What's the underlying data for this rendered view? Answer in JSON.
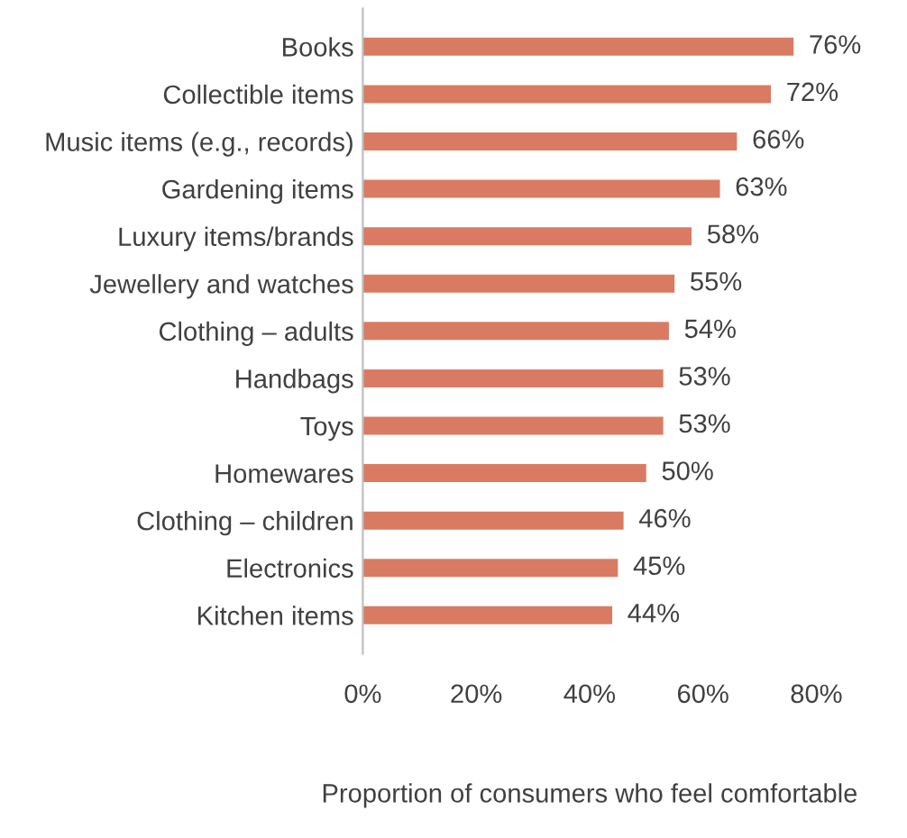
{
  "chart_data": {
    "type": "bar",
    "orientation": "horizontal",
    "categories": [
      "Books",
      "Collectible items",
      "Music items (e.g., records)",
      "Gardening items",
      "Luxury items/brands",
      "Jewellery and watches",
      "Clothing – adults",
      "Handbags",
      "Toys",
      "Homewares",
      "Clothing – children",
      "Electronics",
      "Kitchen items"
    ],
    "values": [
      76,
      72,
      66,
      63,
      58,
      55,
      54,
      53,
      53,
      50,
      46,
      45,
      44
    ],
    "value_labels": [
      "76%",
      "72%",
      "66%",
      "63%",
      "58%",
      "55%",
      "54%",
      "53%",
      "53%",
      "50%",
      "46%",
      "45%",
      "44%"
    ],
    "color": "#d97b62",
    "xlim": [
      0,
      80
    ],
    "xticks": [
      {
        "value": 0,
        "label": "0%"
      },
      {
        "value": 20,
        "label": "20%"
      },
      {
        "value": 40,
        "label": "40%"
      },
      {
        "value": 60,
        "label": "60%"
      },
      {
        "value": 80,
        "label": "80%"
      }
    ],
    "xlabel": "Proportion of consumers who feel comfortable",
    "grid": false,
    "legend": false
  }
}
